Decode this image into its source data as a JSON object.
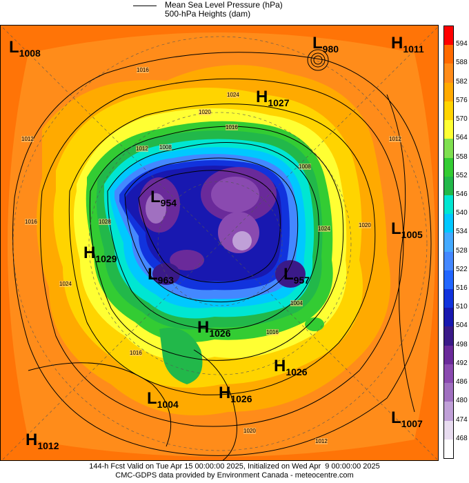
{
  "legend": {
    "mslp": "Mean Sea Level Pressure (hPa)",
    "heights": "500-hPa Heights (dam)"
  },
  "colorbar": {
    "labels": [
      "594",
      "588",
      "582",
      "576",
      "570",
      "564",
      "558",
      "552",
      "546",
      "540",
      "534",
      "528",
      "522",
      "516",
      "510",
      "504",
      "498",
      "492",
      "486",
      "480",
      "474",
      "468"
    ],
    "colors": [
      "#ff0000",
      "#ff6a00",
      "#ff8c1a",
      "#ffaa00",
      "#ffd400",
      "#ffff33",
      "#7fe050",
      "#33cc33",
      "#22b84a",
      "#00e6d2",
      "#00c8ff",
      "#44aaff",
      "#4488ff",
      "#2266ff",
      "#1133dd",
      "#1818b0",
      "#3a1a88",
      "#6a2a9a",
      "#8a4ab0",
      "#a070c0",
      "#c0a0d8",
      "#e8dcf0",
      "#ffffff"
    ]
  },
  "systems": [
    {
      "type": "L",
      "value": "1008"
    },
    {
      "type": "L",
      "value": "980"
    },
    {
      "type": "H",
      "value": "1011"
    },
    {
      "type": "H",
      "value": "1027"
    },
    {
      "type": "L",
      "value": "954"
    },
    {
      "type": "H",
      "value": "1029"
    },
    {
      "type": "L",
      "value": "1005"
    },
    {
      "type": "L",
      "value": "963"
    },
    {
      "type": "L",
      "value": "957"
    },
    {
      "type": "H",
      "value": "1026"
    },
    {
      "type": "H",
      "value": "1026"
    },
    {
      "type": "L",
      "value": "1004"
    },
    {
      "type": "H",
      "value": "1026"
    },
    {
      "type": "L",
      "value": "1007"
    },
    {
      "type": "H",
      "value": "1012"
    }
  ],
  "isobar_labels": [
    "1016",
    "1024",
    "1020",
    "1016",
    "1012",
    "1008",
    "1024",
    "1028",
    "1016",
    "1012",
    "1024",
    "1020",
    "1012",
    "1008",
    "1016",
    "1020",
    "1004",
    "1012",
    "1016"
  ],
  "footer": {
    "line1": "144-h Fcst Valid on Tue Apr 15 00:00:00 2025, Initialized on Wed Apr  9 00:00:00 2025",
    "line2": "CMC-GDPS data provided by Environment Canada - meteocentre.com"
  }
}
